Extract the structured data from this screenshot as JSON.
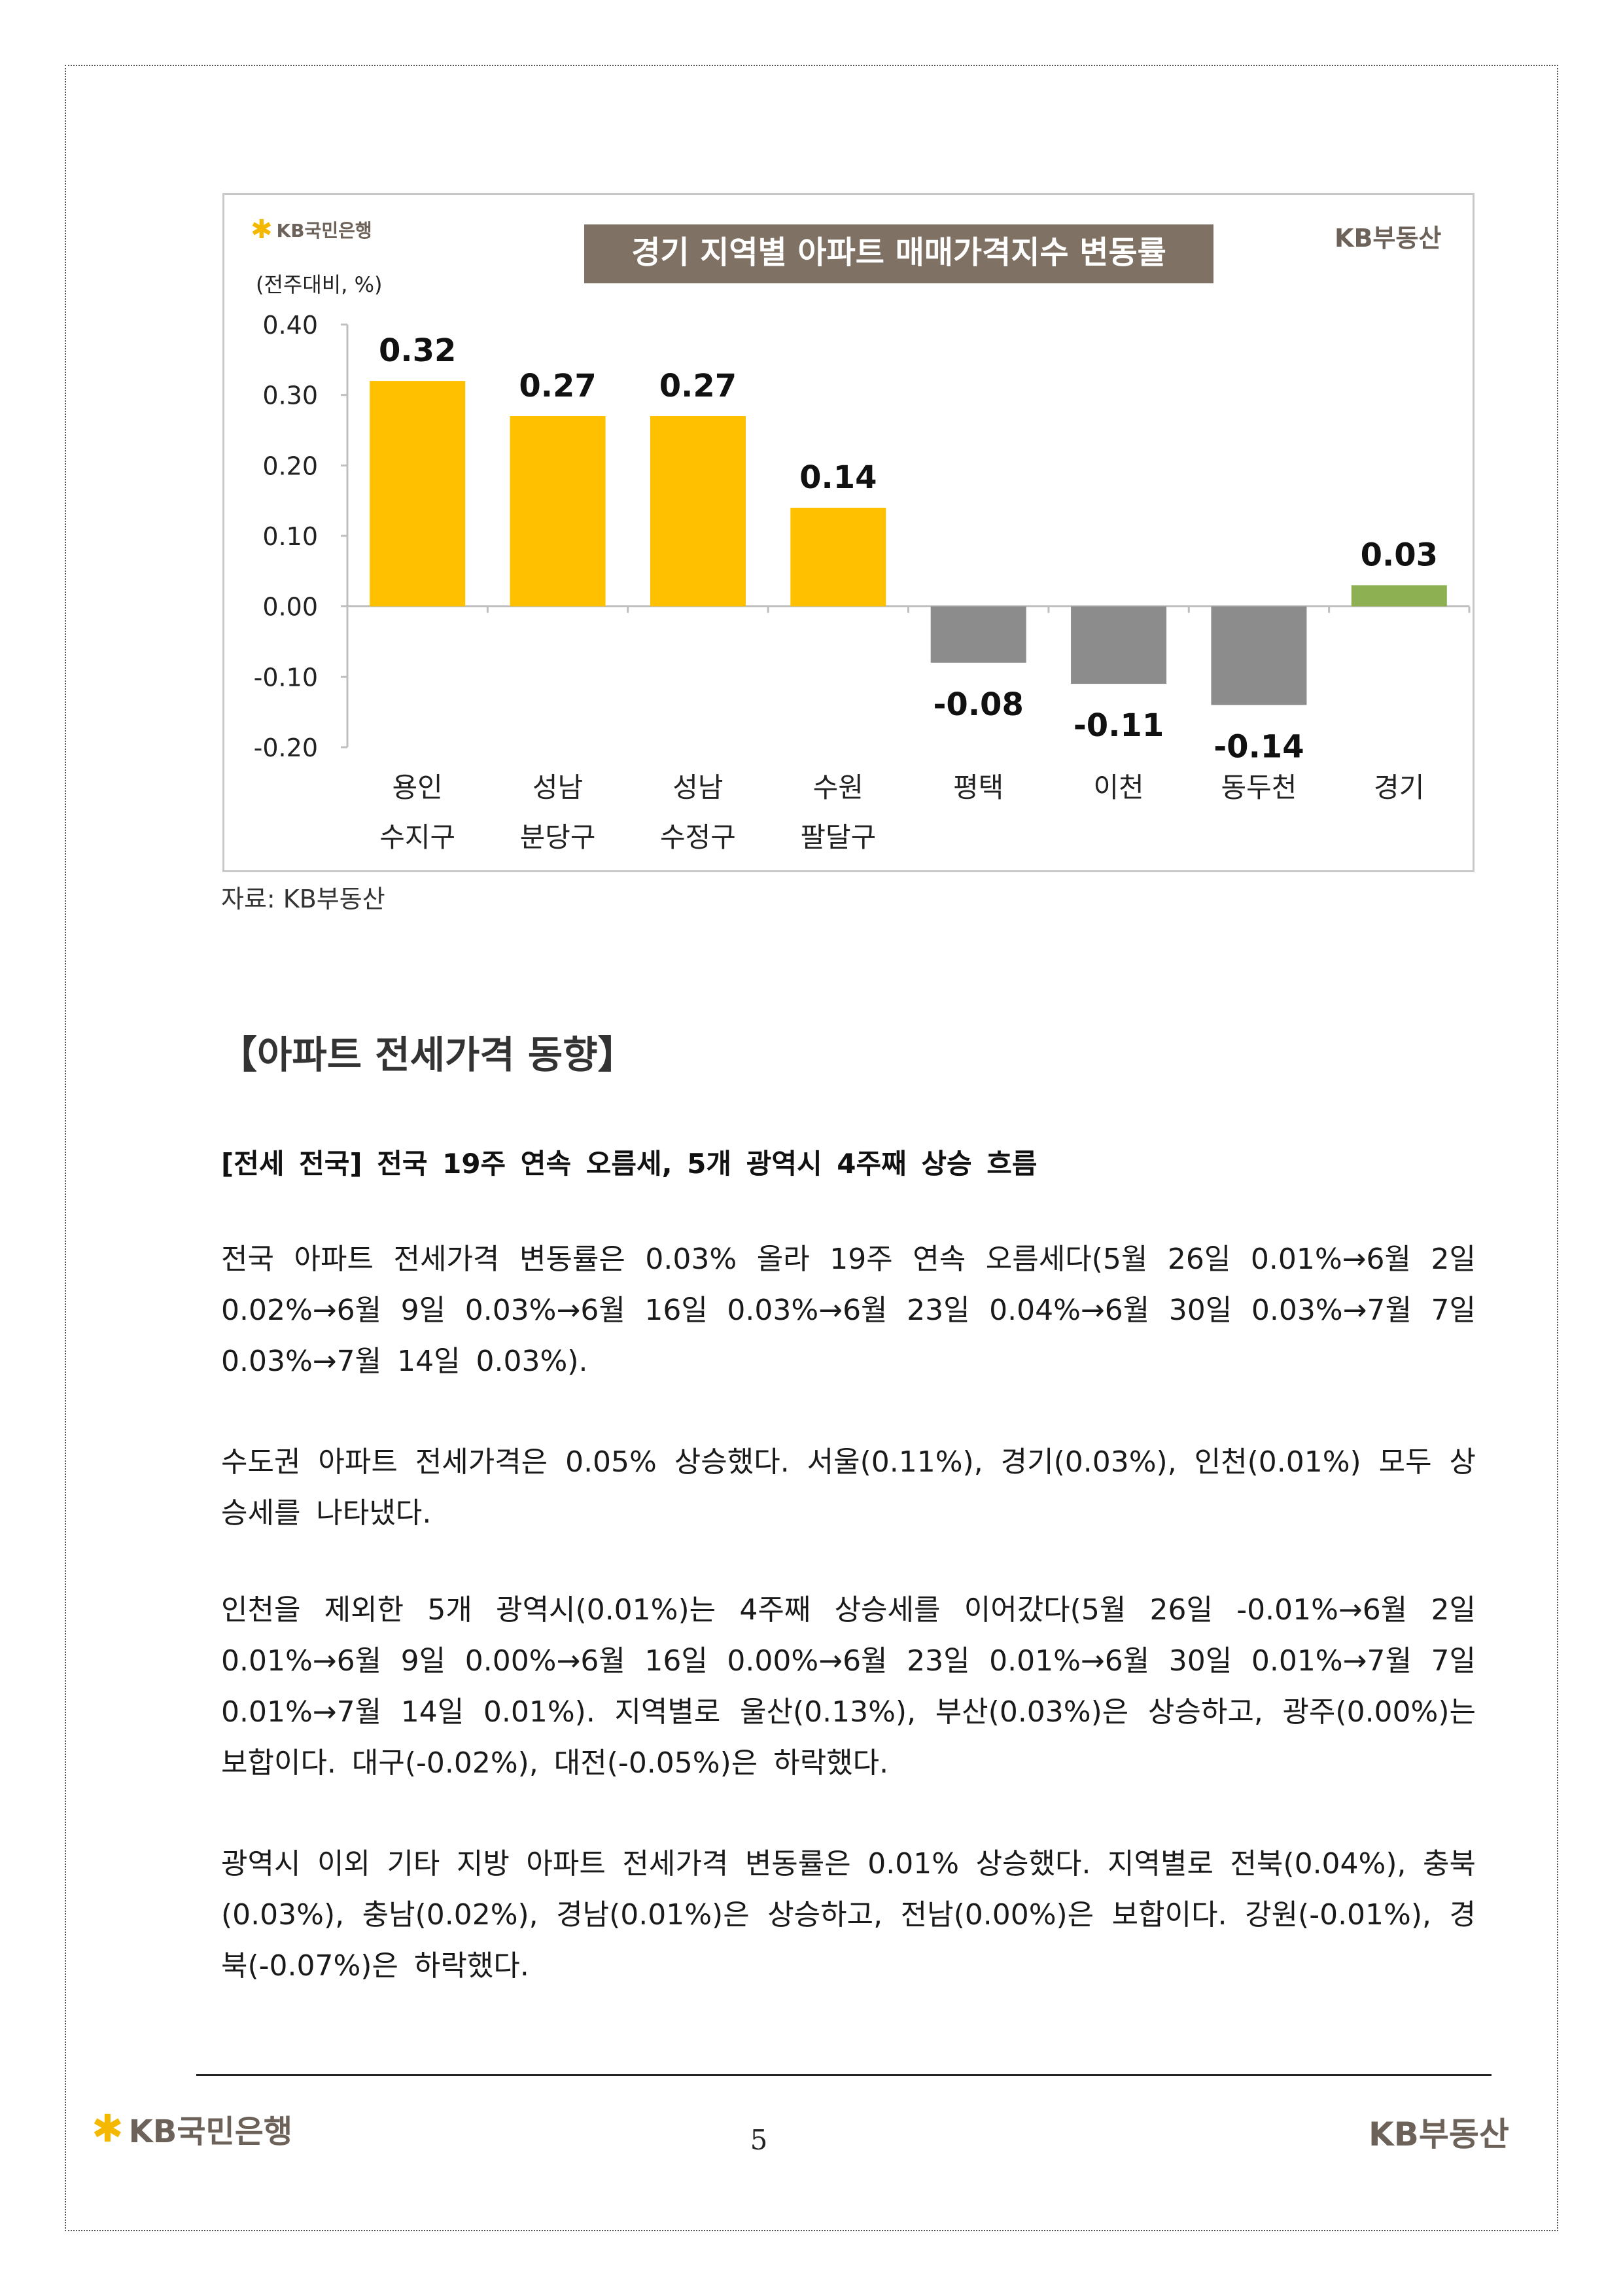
{
  "chart_header": {
    "bank_logo_text": "KB국민은행",
    "land_logo_text": "KB부동산",
    "unit": "(전주대비, %)"
  },
  "chart_data": {
    "type": "bar",
    "title": "경기 지역별 아파트 매매가격지수 변동률",
    "categories": [
      [
        "용인",
        "수지구"
      ],
      [
        "성남",
        "분당구"
      ],
      [
        "성남",
        "수정구"
      ],
      [
        "수원",
        "팔달구"
      ],
      [
        "평택"
      ],
      [
        "이천"
      ],
      [
        "동두천"
      ],
      [
        "경기"
      ]
    ],
    "values": [
      0.32,
      0.27,
      0.27,
      0.14,
      -0.08,
      -0.11,
      -0.14,
      0.03
    ],
    "value_labels": [
      "0.32",
      "0.27",
      "0.27",
      "0.14",
      "-0.08",
      "-0.11",
      "-0.14",
      "0.03"
    ],
    "bar_colors": [
      "#FFC000",
      "#FFC000",
      "#FFC000",
      "#FFC000",
      "#8C8C8C",
      "#8C8C8C",
      "#8C8C8C",
      "#8DB152"
    ],
    "yticks": [
      "0.40",
      "0.30",
      "0.20",
      "0.10",
      "0.00",
      "-0.10",
      "-0.20"
    ],
    "ylim": [
      -0.2,
      0.4
    ],
    "grid": false
  },
  "source": "자료: KB부동산",
  "section_title": "【아파트 전세가격 동향】",
  "subheading": "[전세 전국] 전국 19주 연속 오름세, 5개 광역시 4주째 상승 흐름",
  "paragraphs": [
    "전국 아파트 전세가격 변동률은 0.03% 올라 19주 연속 오름세다(5월 26일 0.01%→6월 2일 0.02%→6월 9일 0.03%→6월 16일 0.03%→6월 23일 0.04%→6월 30일 0.03%→7월 7일 0.03%→7월 14일 0.03%).",
    "수도권 아파트 전세가격은 0.05% 상승했다. 서울(0.11%), 경기(0.03%), 인천(0.01%) 모두 상승세를 나타냈다.",
    "인천을 제외한 5개 광역시(0.01%)는 4주째 상승세를 이어갔다(5월 26일 -0.01%→6월 2일 0.01%→6월 9일 0.00%→6월 16일 0.00%→6월 23일 0.01%→6월 30일 0.01%→7월 7일 0.01%→7월 14일 0.01%). 지역별로 울산(0.13%), 부산(0.03%)은 상승하고, 광주(0.00%)는 보합이다. 대구(-0.02%), 대전(-0.05%)은 하락했다.",
    "광역시 이외 기타 지방 아파트 전세가격 변동률은 0.01% 상승했다. 지역별로 전북(0.04%), 충북(0.03%), 충남(0.02%), 경남(0.01%)은 상승하고, 전남(0.00%)은 보합이다. 강원(-0.01%), 경북(-0.07%)은 하락했다."
  ],
  "footer": {
    "bank_logo_text": "KB국민은행",
    "land_logo_text": "KB부동산",
    "page_number": "5"
  }
}
